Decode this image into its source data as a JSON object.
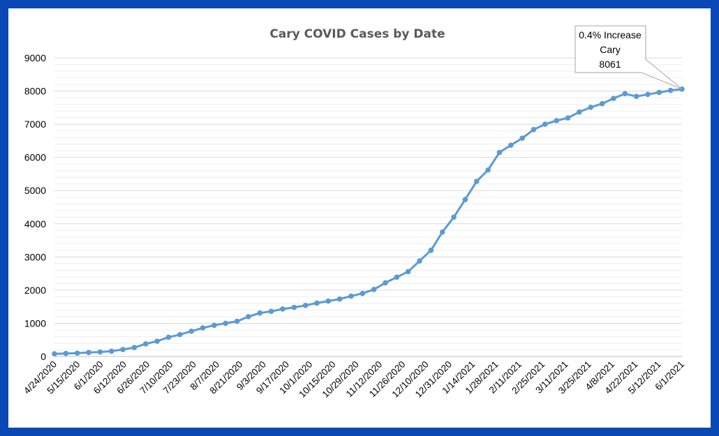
{
  "chart_data": {
    "type": "line",
    "title": "Cary COVID Cases by Date",
    "xlabel": "",
    "ylabel": "",
    "ylim": [
      0,
      9000
    ],
    "yticks": [
      0,
      1000,
      2000,
      3000,
      4000,
      5000,
      6000,
      7000,
      8000,
      9000
    ],
    "grid": true,
    "minor_grid": true,
    "legend": "none",
    "series": [
      {
        "color": "#5b9bd5",
        "values": [
          80,
          90,
          100,
          120,
          135,
          160,
          210,
          270,
          380,
          460,
          580,
          660,
          760,
          860,
          940,
          1000,
          1060,
          1200,
          1310,
          1360,
          1430,
          1480,
          1540,
          1610,
          1670,
          1730,
          1820,
          1900,
          2020,
          2220,
          2390,
          2560,
          2880,
          3200,
          3750,
          4200,
          4730,
          5280,
          5620,
          6150,
          6370,
          6580,
          6840,
          7000,
          7110,
          7190,
          7370,
          7510,
          7620,
          7780,
          7920,
          7840,
          7900,
          7960,
          8020,
          8061
        ]
      }
    ],
    "x_tick_labels": [
      "4/24/2020",
      "5/15/2020",
      "6/1/2020",
      "6/12/2020",
      "6/26/2020",
      "7/10/2020",
      "7/23/2020",
      "8/7/2020",
      "8/21/2020",
      "9/3/2020",
      "9/17/2020",
      "10/1/2020",
      "10/15/2020",
      "10/29/2020",
      "11/12/2020",
      "11/26/2020",
      "12/10/2020",
      "12/31/2020",
      "1/14/2021",
      "1/28/2021",
      "2/11/2021",
      "2/25/2021",
      "3/11/2021",
      "3/25/2021",
      "4/8/2021",
      "4/22/2021",
      "5/12/2021",
      "6/1/2021"
    ],
    "annotation": {
      "lines": [
        "0.4% Increase",
        "Cary",
        "8061"
      ],
      "target_value": 8061
    }
  },
  "colors": {
    "background_border": "#0a49b5",
    "line": "#5b9bd5",
    "grid": "#d9d9d9",
    "minor_grid": "#eeeeee",
    "title": "#595959"
  }
}
